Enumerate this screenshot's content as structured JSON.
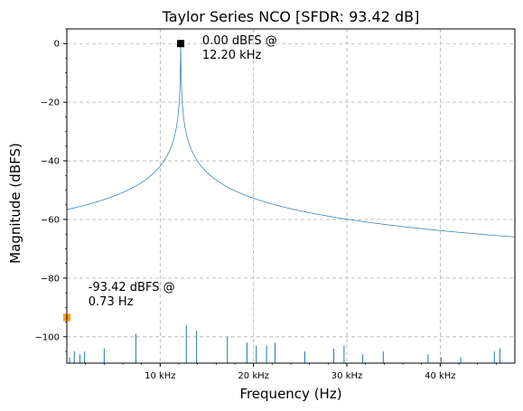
{
  "chart_data": {
    "type": "line",
    "title": "Taylor Series NCO [SFDR: 93.42 dB]",
    "xlabel": "Frequency (Hz)",
    "ylabel": "Magnitude (dBFS)",
    "xlim": [
      0,
      48000
    ],
    "ylim": [
      -109,
      5
    ],
    "grid": true,
    "x_ticks": [
      10000,
      20000,
      30000,
      40000
    ],
    "x_tick_labels": [
      "10 kHz",
      "20 kHz",
      "30 kHz",
      "40 kHz"
    ],
    "y_ticks": [
      0,
      -20,
      -40,
      -60,
      -80,
      -100
    ],
    "y_tick_labels": [
      "0",
      "−20",
      "−40",
      "−60",
      "−80",
      "−100"
    ],
    "series": [
      {
        "color": "#1f77b4",
        "peak_frequency": 12200,
        "peak_level": 0,
        "floor_level": -108,
        "spurs": [
          {
            "f": 300,
            "db": -107
          },
          {
            "f": 800,
            "db": -105
          },
          {
            "f": 1400,
            "db": -106
          },
          {
            "f": 1900,
            "db": -105
          },
          {
            "f": 4000,
            "db": -104
          },
          {
            "f": 7400,
            "db": -99
          },
          {
            "f": 12800,
            "db": -96
          },
          {
            "f": 13900,
            "db": -98
          },
          {
            "f": 17200,
            "db": -100
          },
          {
            "f": 19300,
            "db": -102
          },
          {
            "f": 20300,
            "db": -103
          },
          {
            "f": 21400,
            "db": -103
          },
          {
            "f": 22300,
            "db": -102
          },
          {
            "f": 25500,
            "db": -105
          },
          {
            "f": 28600,
            "db": -104
          },
          {
            "f": 29700,
            "db": -103
          },
          {
            "f": 31700,
            "db": -106
          },
          {
            "f": 33900,
            "db": -105
          },
          {
            "f": 38700,
            "db": -106
          },
          {
            "f": 40100,
            "db": -107
          },
          {
            "f": 42200,
            "db": -107
          },
          {
            "f": 45800,
            "db": -105
          },
          {
            "f": 46400,
            "db": -104
          }
        ]
      }
    ],
    "markers": [
      {
        "x": 12200,
        "y": 0,
        "color": "#000000",
        "shape": "square"
      },
      {
        "x": 0.73,
        "y": -93.42,
        "color": "#ff9f00",
        "shape": "square"
      }
    ],
    "annotations": [
      {
        "lines": [
          "0.00 dBFS @",
          "12.20 kHz"
        ],
        "x": 14500,
        "y": 0
      },
      {
        "lines": [
          "-93.42 dBFS @",
          "0.73 Hz"
        ],
        "x": 2300,
        "y": -84
      }
    ]
  }
}
